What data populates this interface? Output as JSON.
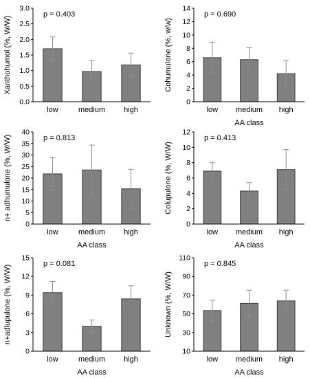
{
  "colors": {
    "bar_fill": "#808080",
    "bar_stroke": "#3a3a3a",
    "axis": "#000000",
    "error_bar": "#8c8c8c"
  },
  "chart_data": [
    {
      "type": "bar",
      "title": "",
      "xlabel": "AA class",
      "ylabel": "Xanthohumol (%, W/W)",
      "annotation": "p = 0.403",
      "categories": [
        "low",
        "medium",
        "high"
      ],
      "values": [
        1.7,
        0.97,
        1.18
      ],
      "errors": [
        0.38,
        0.36,
        0.38
      ],
      "ylim": [
        0,
        3.0
      ],
      "yticks": [
        "0.0",
        "0.5",
        "1.0",
        "1.5",
        "2.0",
        "2.5",
        "3.0"
      ],
      "grid": false,
      "show_xlabel": false
    },
    {
      "type": "bar",
      "title": "",
      "xlabel": "AA class",
      "ylabel": "Cohumulone (%, w/w)",
      "annotation": "p = 0.690",
      "categories": [
        "low",
        "medium",
        "high"
      ],
      "values": [
        6.6,
        6.3,
        4.2
      ],
      "errors": [
        2.3,
        1.8,
        2.0
      ],
      "ylim": [
        0,
        14
      ],
      "yticks": [
        "0",
        "2",
        "4",
        "6",
        "8",
        "10",
        "12",
        "14"
      ],
      "grid": false,
      "show_xlabel": true
    },
    {
      "type": "bar",
      "title": "",
      "xlabel": "AA class",
      "ylabel": "n+ adhumulone (%, W/W)",
      "annotation": "p = 0.813",
      "categories": [
        "low",
        "medium",
        "high"
      ],
      "values": [
        21.8,
        23.5,
        15.3
      ],
      "errors": [
        7.0,
        10.8,
        8.5
      ],
      "ylim": [
        0,
        40
      ],
      "yticks": [
        "0",
        "5",
        "10",
        "15",
        "20",
        "25",
        "30",
        "35",
        "40"
      ],
      "grid": false,
      "show_xlabel": true
    },
    {
      "type": "bar",
      "title": "",
      "xlabel": "AA class",
      "ylabel": "Colupulone (%, W/W)",
      "annotation": "p = 0.413",
      "categories": [
        "low",
        "medium",
        "high"
      ],
      "values": [
        6.9,
        4.3,
        7.1
      ],
      "errors": [
        1.1,
        1.1,
        2.6
      ],
      "ylim": [
        0,
        12
      ],
      "yticks": [
        "0",
        "2",
        "4",
        "6",
        "8",
        "10",
        "12"
      ],
      "grid": false,
      "show_xlabel": true
    },
    {
      "type": "bar",
      "title": "",
      "xlabel": "AA class",
      "ylabel": "n+adlupulone (%, W/W)",
      "annotation": "p = 0.081",
      "categories": [
        "low",
        "medium",
        "high"
      ],
      "values": [
        9.4,
        4.0,
        8.4
      ],
      "errors": [
        1.8,
        1.0,
        2.1
      ],
      "ylim": [
        0,
        15
      ],
      "yticks": [
        "0",
        "3",
        "6",
        "9",
        "12",
        "15"
      ],
      "grid": false,
      "show_xlabel": true
    },
    {
      "type": "bar",
      "title": "",
      "xlabel": "AA class",
      "ylabel": "Unknown (%, W/W)",
      "annotation": "p = 0.845",
      "categories": [
        "low",
        "medium",
        "high"
      ],
      "values": [
        53.5,
        61.2,
        63.8
      ],
      "errors": [
        11.0,
        14.0,
        11.5
      ],
      "ylim": [
        10,
        110
      ],
      "yticks": [
        "10",
        "30",
        "50",
        "70",
        "90",
        "110"
      ],
      "grid": false,
      "show_xlabel": true
    }
  ]
}
